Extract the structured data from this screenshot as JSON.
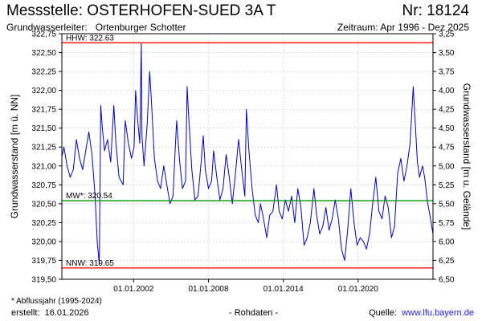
{
  "header": {
    "title": "Messstelle: OSTERHOFEN-SUED 3A T",
    "number": "Nr: 18124",
    "aquifer_label": "Grundwasserleiter:",
    "aquifer_value": "Ortenburger Schotter",
    "period": "Zeitraum: Apr 1996 - Dez 2025"
  },
  "footer": {
    "note": "* Abflussjahr (1995-2024)",
    "created_label": "erstellt:",
    "created_date": "16.01.2026",
    "raw_data": "- Rohdaten -",
    "source_label": "Quelle:",
    "source_url": "www.lfu.bayern.de"
  },
  "colors": {
    "series": "#0000cc",
    "hhw_line": "#ff0000",
    "nnw_line": "#ff0000",
    "mw_line": "#009900",
    "grid": "#c8c8c8",
    "frame": "#000000"
  },
  "chart_data": {
    "type": "line",
    "x_type": "date",
    "xlim": [
      "1996-04-01",
      "2025-12-31"
    ],
    "ylim": [
      319.5,
      322.75
    ],
    "ylim_right": [
      6.5,
      3.25
    ],
    "ylabel": "Grundwasserstand [m ü. NN]",
    "ylabel_right": "Grundwasserstand [m u. Gelände]",
    "y_ticks": [
      "322,75",
      "322,50",
      "322,25",
      "322,00",
      "321,75",
      "321,50",
      "321,25",
      "321,00",
      "320,75",
      "320,50",
      "320,25",
      "320,00",
      "319,75",
      "319,50"
    ],
    "y_ticks_right": [
      "3,25",
      "3,50",
      "3,75",
      "4,00",
      "4,25",
      "4,50",
      "4,75",
      "5,00",
      "5,25",
      "5,50",
      "5,75",
      "6,00",
      "6,25",
      "6,50"
    ],
    "x_ticks": [
      "01.01.2002",
      "01.01.2008",
      "01.01.2014",
      "01.01.2020"
    ],
    "grid": true,
    "reference_lines": [
      {
        "label": "HHW: 322.63",
        "value": 322.63,
        "color": "#ff0000"
      },
      {
        "label": "MW*: 320.54",
        "value": 320.54,
        "color": "#009900"
      },
      {
        "label": "NNW: 319.65",
        "value": 319.65,
        "color": "#ff0000"
      }
    ],
    "series": [
      {
        "points": [
          [
            "1996-04-01",
            321.12
          ],
          [
            "1996-06-01",
            321.25
          ],
          [
            "1996-09-01",
            321.0
          ],
          [
            "1996-12-01",
            320.85
          ],
          [
            "1997-03-01",
            320.95
          ],
          [
            "1997-06-01",
            321.35
          ],
          [
            "1997-09-01",
            321.1
          ],
          [
            "1997-12-01",
            320.95
          ],
          [
            "1998-03-01",
            321.2
          ],
          [
            "1998-06-01",
            321.45
          ],
          [
            "1998-09-01",
            321.15
          ],
          [
            "1998-12-01",
            320.6
          ],
          [
            "1999-02-01",
            320.0
          ],
          [
            "1999-04-01",
            319.7
          ],
          [
            "1999-05-15",
            321.8
          ],
          [
            "1999-07-01",
            321.5
          ],
          [
            "1999-09-01",
            321.2
          ],
          [
            "1999-12-01",
            321.35
          ],
          [
            "2000-03-01",
            321.05
          ],
          [
            "2000-06-01",
            321.8
          ],
          [
            "2000-08-01",
            321.3
          ],
          [
            "2000-11-01",
            320.85
          ],
          [
            "2001-03-01",
            320.75
          ],
          [
            "2001-05-01",
            321.6
          ],
          [
            "2001-08-01",
            321.3
          ],
          [
            "2001-11-01",
            321.1
          ],
          [
            "2002-01-15",
            321.25
          ],
          [
            "2002-03-01",
            322.0
          ],
          [
            "2002-05-01",
            321.6
          ],
          [
            "2002-07-01",
            321.3
          ],
          [
            "2002-08-15",
            322.63
          ],
          [
            "2002-09-01",
            321.4
          ],
          [
            "2002-11-01",
            321.0
          ],
          [
            "2003-02-01",
            321.55
          ],
          [
            "2003-04-15",
            322.25
          ],
          [
            "2003-06-01",
            321.9
          ],
          [
            "2003-09-01",
            321.1
          ],
          [
            "2003-12-01",
            320.8
          ],
          [
            "2004-03-01",
            320.7
          ],
          [
            "2004-06-01",
            321.0
          ],
          [
            "2004-09-01",
            320.75
          ],
          [
            "2004-12-01",
            320.5
          ],
          [
            "2005-03-01",
            320.6
          ],
          [
            "2005-05-01",
            321.2
          ],
          [
            "2005-06-15",
            321.6
          ],
          [
            "2005-09-01",
            321.1
          ],
          [
            "2005-12-01",
            320.7
          ],
          [
            "2006-03-01",
            320.8
          ],
          [
            "2006-04-15",
            322.05
          ],
          [
            "2006-06-01",
            321.65
          ],
          [
            "2006-09-01",
            320.95
          ],
          [
            "2006-12-01",
            320.55
          ],
          [
            "2007-03-01",
            320.6
          ],
          [
            "2007-06-01",
            321.05
          ],
          [
            "2007-08-01",
            321.4
          ],
          [
            "2007-10-01",
            320.95
          ],
          [
            "2008-01-01",
            320.7
          ],
          [
            "2008-04-01",
            320.8
          ],
          [
            "2008-06-01",
            321.2
          ],
          [
            "2008-09-01",
            320.85
          ],
          [
            "2008-12-01",
            320.55
          ],
          [
            "2009-03-01",
            320.7
          ],
          [
            "2009-06-01",
            321.15
          ],
          [
            "2009-09-01",
            320.85
          ],
          [
            "2009-12-01",
            320.5
          ],
          [
            "2010-03-01",
            320.9
          ],
          [
            "2010-06-01",
            321.35
          ],
          [
            "2010-09-01",
            320.95
          ],
          [
            "2010-12-01",
            320.6
          ],
          [
            "2011-01-15",
            321.75
          ],
          [
            "2011-04-01",
            321.2
          ],
          [
            "2011-07-01",
            320.7
          ],
          [
            "2011-10-01",
            320.35
          ],
          [
            "2012-01-01",
            320.25
          ],
          [
            "2012-03-01",
            320.5
          ],
          [
            "2012-06-01",
            320.3
          ],
          [
            "2012-09-01",
            320.05
          ],
          [
            "2012-12-01",
            320.35
          ],
          [
            "2013-03-01",
            320.4
          ],
          [
            "2013-06-15",
            320.75
          ],
          [
            "2013-09-01",
            320.4
          ],
          [
            "2013-12-01",
            320.3
          ],
          [
            "2014-03-01",
            320.55
          ],
          [
            "2014-06-01",
            320.4
          ],
          [
            "2014-09-01",
            320.6
          ],
          [
            "2014-12-01",
            320.25
          ],
          [
            "2015-03-01",
            320.7
          ],
          [
            "2015-06-01",
            320.45
          ],
          [
            "2015-09-01",
            319.95
          ],
          [
            "2015-12-01",
            320.05
          ],
          [
            "2016-03-01",
            320.25
          ],
          [
            "2016-06-15",
            320.7
          ],
          [
            "2016-09-01",
            320.35
          ],
          [
            "2016-12-01",
            320.1
          ],
          [
            "2017-03-01",
            320.2
          ],
          [
            "2017-06-01",
            320.45
          ],
          [
            "2017-09-01",
            320.15
          ],
          [
            "2017-12-01",
            320.3
          ],
          [
            "2018-03-01",
            320.55
          ],
          [
            "2018-06-01",
            320.3
          ],
          [
            "2018-09-01",
            319.9
          ],
          [
            "2018-12-01",
            319.75
          ],
          [
            "2019-03-01",
            320.15
          ],
          [
            "2019-06-01",
            320.7
          ],
          [
            "2019-09-01",
            320.25
          ],
          [
            "2019-12-01",
            319.95
          ],
          [
            "2020-03-01",
            320.05
          ],
          [
            "2020-06-01",
            320.0
          ],
          [
            "2020-09-01",
            319.9
          ],
          [
            "2020-12-01",
            320.1
          ],
          [
            "2021-03-01",
            320.5
          ],
          [
            "2021-06-01",
            320.85
          ],
          [
            "2021-09-01",
            320.4
          ],
          [
            "2021-12-01",
            320.3
          ],
          [
            "2022-03-01",
            320.6
          ],
          [
            "2022-06-01",
            320.45
          ],
          [
            "2022-09-01",
            320.05
          ],
          [
            "2022-12-01",
            320.2
          ],
          [
            "2023-03-01",
            320.9
          ],
          [
            "2023-06-01",
            321.1
          ],
          [
            "2023-09-01",
            320.8
          ],
          [
            "2023-12-01",
            321.0
          ],
          [
            "2024-03-01",
            321.3
          ],
          [
            "2024-06-01",
            322.05
          ],
          [
            "2024-08-01",
            321.55
          ],
          [
            "2024-10-01",
            321.05
          ],
          [
            "2024-12-01",
            320.85
          ],
          [
            "2025-03-01",
            321.0
          ],
          [
            "2025-05-01",
            320.85
          ],
          [
            "2025-08-01",
            320.5
          ],
          [
            "2025-10-01",
            320.35
          ],
          [
            "2025-12-31",
            320.1
          ]
        ]
      }
    ]
  }
}
